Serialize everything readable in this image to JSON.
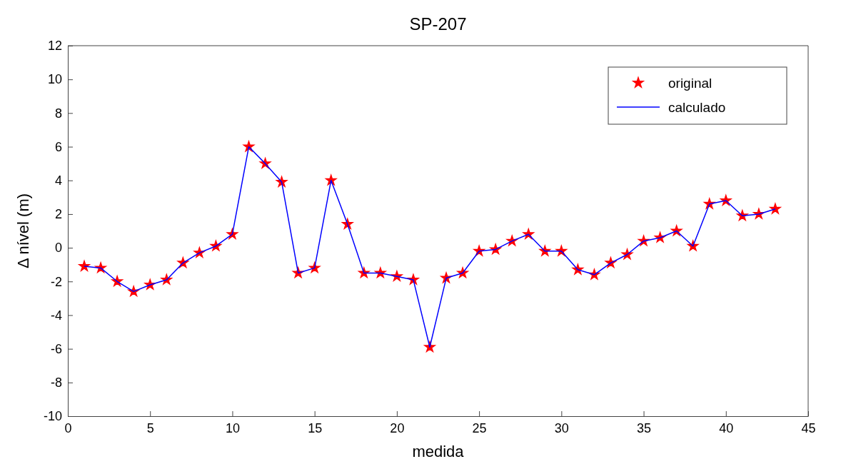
{
  "chart_data": {
    "type": "line",
    "title": "SP-207",
    "xlabel": "medida",
    "ylabel": "Δ nível (m)",
    "x": [
      1,
      2,
      3,
      4,
      5,
      6,
      7,
      8,
      9,
      10,
      11,
      12,
      13,
      14,
      15,
      16,
      17,
      18,
      19,
      20,
      21,
      22,
      23,
      24,
      25,
      26,
      27,
      28,
      29,
      30,
      31,
      32,
      33,
      34,
      35,
      36,
      37,
      38,
      39,
      40,
      41,
      42,
      43
    ],
    "series": [
      {
        "name": "original",
        "type": "scatter",
        "marker": "star",
        "color": "#ff0000",
        "values": [
          -1.1,
          -1.2,
          -2.0,
          -2.6,
          -2.2,
          -1.9,
          -0.9,
          -0.3,
          0.1,
          0.8,
          6.0,
          5.0,
          3.9,
          -1.5,
          -1.2,
          4.0,
          1.4,
          -1.5,
          -1.5,
          -1.7,
          -1.9,
          -5.9,
          -1.8,
          -1.5,
          -0.2,
          -0.1,
          0.4,
          0.8,
          -0.2,
          -0.2,
          -1.3,
          -1.6,
          -0.9,
          -0.4,
          0.4,
          0.6,
          1.0,
          0.1,
          2.6,
          2.8,
          1.9,
          2.0,
          2.3
        ]
      },
      {
        "name": "calculado",
        "color": "#0000ff",
        "values": [
          -1.1,
          -1.2,
          -2.0,
          -2.6,
          -2.2,
          -1.9,
          -0.9,
          -0.3,
          0.1,
          0.8,
          6.0,
          5.0,
          3.9,
          -1.5,
          -1.2,
          4.0,
          1.4,
          -1.5,
          -1.5,
          -1.7,
          -1.9,
          -5.9,
          -1.8,
          -1.5,
          -0.2,
          -0.1,
          0.4,
          0.8,
          -0.2,
          -0.2,
          -1.3,
          -1.6,
          -0.9,
          -0.4,
          0.4,
          0.6,
          1.0,
          0.1,
          2.6,
          2.8,
          1.9,
          2.0,
          2.3
        ]
      }
    ],
    "xlim": [
      0,
      45
    ],
    "xticks": [
      0,
      5,
      10,
      15,
      20,
      25,
      30,
      35,
      40,
      45
    ],
    "ylim": [
      -10,
      12
    ],
    "yticks": [
      -10,
      -8,
      -6,
      -4,
      -2,
      0,
      2,
      4,
      6,
      8,
      10,
      12
    ],
    "legend": "top right"
  }
}
